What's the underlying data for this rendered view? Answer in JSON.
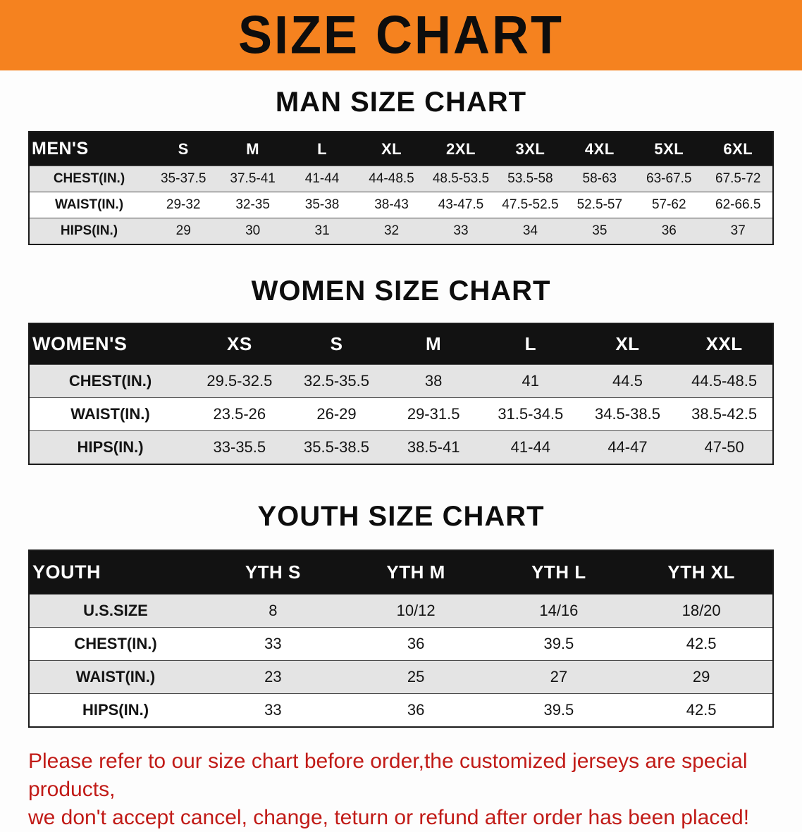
{
  "banner": {
    "title": "SIZE CHART"
  },
  "colors": {
    "banner_bg": "#F5821F",
    "table_header_bg": "#121212",
    "row_alt_bg": "#E4E4E4",
    "disclaimer_red": "#C11B17"
  },
  "sections": [
    {
      "id": "men",
      "heading": "MAN SIZE CHART",
      "table": {
        "header": [
          "MEN'S",
          "S",
          "M",
          "L",
          "XL",
          "2XL",
          "3XL",
          "4XL",
          "5XL",
          "6XL"
        ],
        "rows": [
          [
            "CHEST(IN.)",
            "35-37.5",
            "37.5-41",
            "41-44",
            "44-48.5",
            "48.5-53.5",
            "53.5-58",
            "58-63",
            "63-67.5",
            "67.5-72"
          ],
          [
            "WAIST(IN.)",
            "29-32",
            "32-35",
            "35-38",
            "38-43",
            "43-47.5",
            "47.5-52.5",
            "52.5-57",
            "57-62",
            "62-66.5"
          ],
          [
            "HIPS(IN.)",
            "29",
            "30",
            "31",
            "32",
            "33",
            "34",
            "35",
            "36",
            "37"
          ]
        ]
      }
    },
    {
      "id": "women",
      "heading": "WOMEN SIZE CHART",
      "table": {
        "header": [
          "WOMEN'S",
          "XS",
          "S",
          "M",
          "L",
          "XL",
          "XXL"
        ],
        "rows": [
          [
            "CHEST(IN.)",
            "29.5-32.5",
            "32.5-35.5",
            "38",
            "41",
            "44.5",
            "44.5-48.5"
          ],
          [
            "WAIST(IN.)",
            "23.5-26",
            "26-29",
            "29-31.5",
            "31.5-34.5",
            "34.5-38.5",
            "38.5-42.5"
          ],
          [
            "HIPS(IN.)",
            "33-35.5",
            "35.5-38.5",
            "38.5-41",
            "41-44",
            "44-47",
            "47-50"
          ]
        ]
      }
    },
    {
      "id": "youth",
      "heading": "YOUTH SIZE CHART",
      "table": {
        "header": [
          "YOUTH",
          "YTH S",
          "YTH M",
          "YTH L",
          "YTH XL"
        ],
        "rows": [
          [
            "U.S.SIZE",
            "8",
            "10/12",
            "14/16",
            "18/20"
          ],
          [
            "CHEST(IN.)",
            "33",
            "36",
            "39.5",
            "42.5"
          ],
          [
            "WAIST(IN.)",
            "23",
            "25",
            "27",
            "29"
          ],
          [
            "HIPS(IN.)",
            "33",
            "36",
            "39.5",
            "42.5"
          ]
        ]
      }
    }
  ],
  "disclaimer": {
    "lines": [
      "Please refer to our size chart before order,the customized jerseys are special products,",
      "we don't accept cancel, change, teturn or refund after order has been placed!"
    ]
  }
}
